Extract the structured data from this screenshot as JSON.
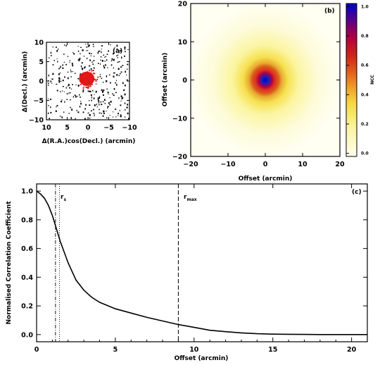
{
  "chart_data": [
    {
      "type": "scatter",
      "panel_label": "(a)",
      "xlabel": "Δ(R.A.)cos(Decl.) (arcmin)",
      "ylabel": "Δ(Decl.) (arcmin)",
      "xlim": [
        10,
        -10
      ],
      "ylim": [
        -10,
        10
      ],
      "x_ticks": [
        "10",
        "5",
        "0",
        "−5",
        "−10"
      ],
      "y_ticks": [
        "10",
        "5",
        "0",
        "−5",
        "−10"
      ],
      "colors": {
        "dots": "#000000",
        "central_blob": "#e01818"
      }
    },
    {
      "type": "heatmap",
      "panel_label": "(b)",
      "xlabel": "Offset (arcmin)",
      "ylabel": "Offset (arcmin)",
      "xlim": [
        -20,
        20
      ],
      "ylim": [
        -20,
        20
      ],
      "x_ticks": [
        "−20",
        "−10",
        "0",
        "10",
        "20"
      ],
      "y_ticks": [
        "20",
        "10",
        "0",
        "−10",
        "−20"
      ],
      "colorbar_label": "NCC",
      "colorbar_ticks": [
        "1.0",
        "0.8",
        "0.6",
        "0.4",
        "0.2",
        "0.0"
      ],
      "colors": {
        "1.0": "#0000c8",
        "0.8": "#b00040",
        "0.6": "#e03018",
        "0.4": "#f0a020",
        "0.2": "#f8f040",
        "0.0": "#fffff0"
      }
    },
    {
      "type": "line",
      "panel_label": "(c)",
      "xlabel": "Offset (arcmin)",
      "ylabel": "Normalised Correlation Coefficient",
      "xlim": [
        0,
        21
      ],
      "ylim": [
        -0.05,
        1.05
      ],
      "x_ticks": [
        "0",
        "5",
        "10",
        "15",
        "20"
      ],
      "y_ticks": [
        "1.0",
        "0.8",
        "0.6",
        "0.4",
        "0.2",
        "0.0"
      ],
      "annotations": {
        "rs_label": "r",
        "rs_sub": "s",
        "rmax_label": "r",
        "rmax_sub": "max"
      },
      "vlines": {
        "rs_dash_dot": 1.2,
        "rs_dotted": 1.45,
        "rmax_dashed": 9.0
      },
      "x": [
        0,
        0.25,
        0.5,
        0.75,
        1.0,
        1.25,
        1.5,
        2.0,
        2.5,
        3.0,
        3.5,
        4.0,
        5.0,
        6.0,
        7.0,
        8.0,
        9.0,
        10.0,
        11.0,
        12.0,
        13.0,
        14.0,
        15.0,
        16.0,
        17.0,
        18.0,
        19.0,
        20.0,
        21.0
      ],
      "y": [
        1.0,
        0.98,
        0.95,
        0.9,
        0.83,
        0.74,
        0.65,
        0.5,
        0.38,
        0.31,
        0.26,
        0.225,
        0.18,
        0.15,
        0.12,
        0.095,
        0.07,
        0.05,
        0.03,
        0.02,
        0.012,
        0.006,
        0.003,
        0.002,
        0.001,
        0.0,
        0.0,
        0.0,
        0.0
      ]
    }
  ]
}
